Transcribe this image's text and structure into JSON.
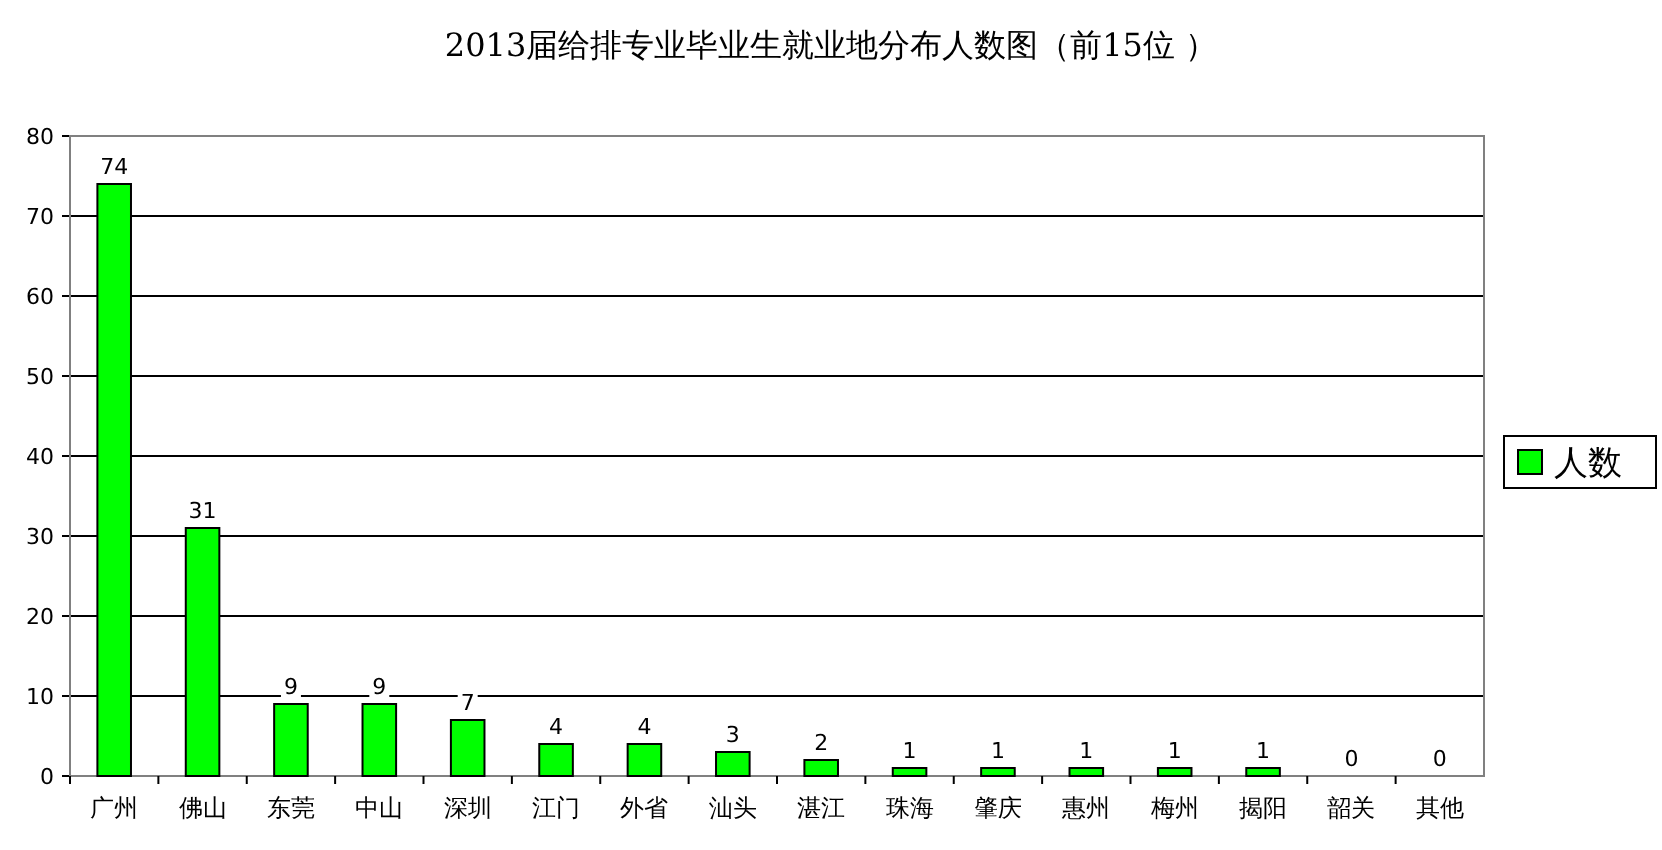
{
  "chart_data": {
    "type": "bar",
    "title": "2013届给排专业毕业生就业地分布人数图（前15位 ）",
    "categories": [
      "广州",
      "佛山",
      "东莞",
      "中山",
      "深圳",
      "江门",
      "外省",
      "汕头",
      "湛江",
      "珠海",
      "肇庆",
      "惠州",
      "梅州",
      "揭阳",
      "韶关",
      "其他"
    ],
    "series": [
      {
        "name": "人数",
        "color": "#00ff00",
        "values": [
          74,
          31,
          9,
          9,
          7,
          4,
          4,
          3,
          2,
          1,
          1,
          1,
          1,
          1,
          0,
          0
        ]
      }
    ],
    "ylim": [
      0,
      80
    ],
    "yticks": [
      0,
      10,
      20,
      30,
      40,
      50,
      60,
      70,
      80
    ],
    "grid": "y",
    "legend": "right",
    "data_labels": true
  }
}
